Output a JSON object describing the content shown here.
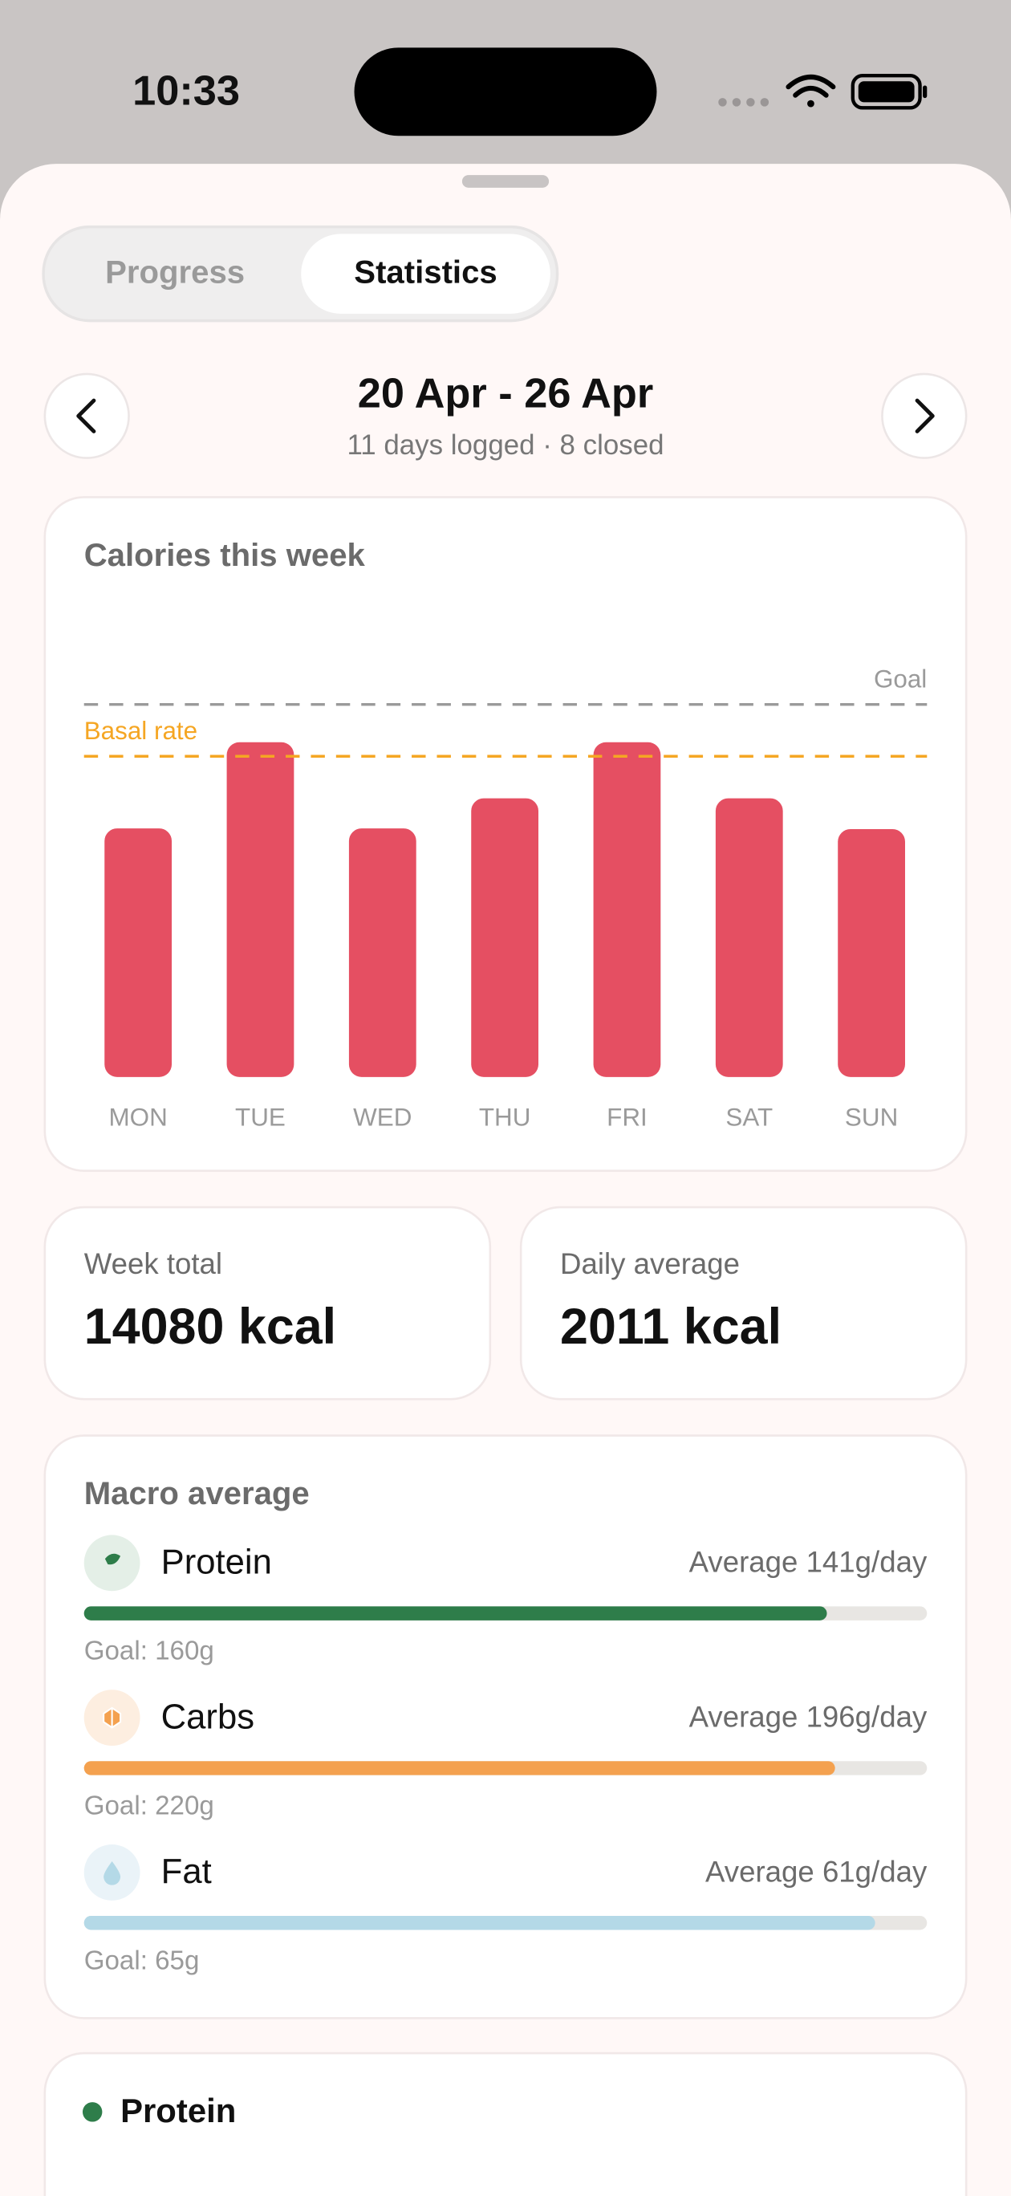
{
  "status_bar": {
    "time": "10:33"
  },
  "tabs": [
    "Progress",
    "Statistics"
  ],
  "header": {
    "title": "20 Apr - 26 Apr",
    "subtitle": "11 days logged · 8 closed"
  },
  "chart_data": {
    "type": "bar",
    "title": "Calories this week",
    "categories": [
      "MON",
      "TUE",
      "WED",
      "THU",
      "FRI",
      "SAT",
      "SUN"
    ],
    "values": [
      1775,
      2390,
      1775,
      1990,
      2390,
      1990,
      1770
    ],
    "color": "#e54f62",
    "ylim": [
      0,
      3400
    ],
    "reference_lines": [
      {
        "name": "Goal",
        "value": 2660,
        "color": "#9a9a9a"
      },
      {
        "name": "Basal rate",
        "value": 2290,
        "color": "#f5a623"
      }
    ]
  },
  "summary": [
    {
      "label": "Week total",
      "value": "14080 kcal"
    },
    {
      "label": "Daily average",
      "value": "2011 kcal"
    }
  ],
  "macros": {
    "title": "Macro average",
    "items": [
      {
        "name": "Protein",
        "average_label": "Average 141g/day",
        "average": 141,
        "goal": 160,
        "goal_label": "Goal: 160g",
        "color": "#2e7d4a",
        "bg": "#e4efe7"
      },
      {
        "name": "Carbs",
        "average_label": "Average 196g/day",
        "average": 196,
        "goal": 220,
        "goal_label": "Goal: 220g",
        "color": "#f4a14f",
        "bg": "#fdeee0"
      },
      {
        "name": "Fat",
        "average_label": "Average 61g/day",
        "average": 61,
        "goal": 65,
        "goal_label": "Goal: 65g",
        "color": "#b4d9e7",
        "bg": "#eaf3f8"
      }
    ]
  },
  "bottom_card": {
    "title": "Protein"
  }
}
